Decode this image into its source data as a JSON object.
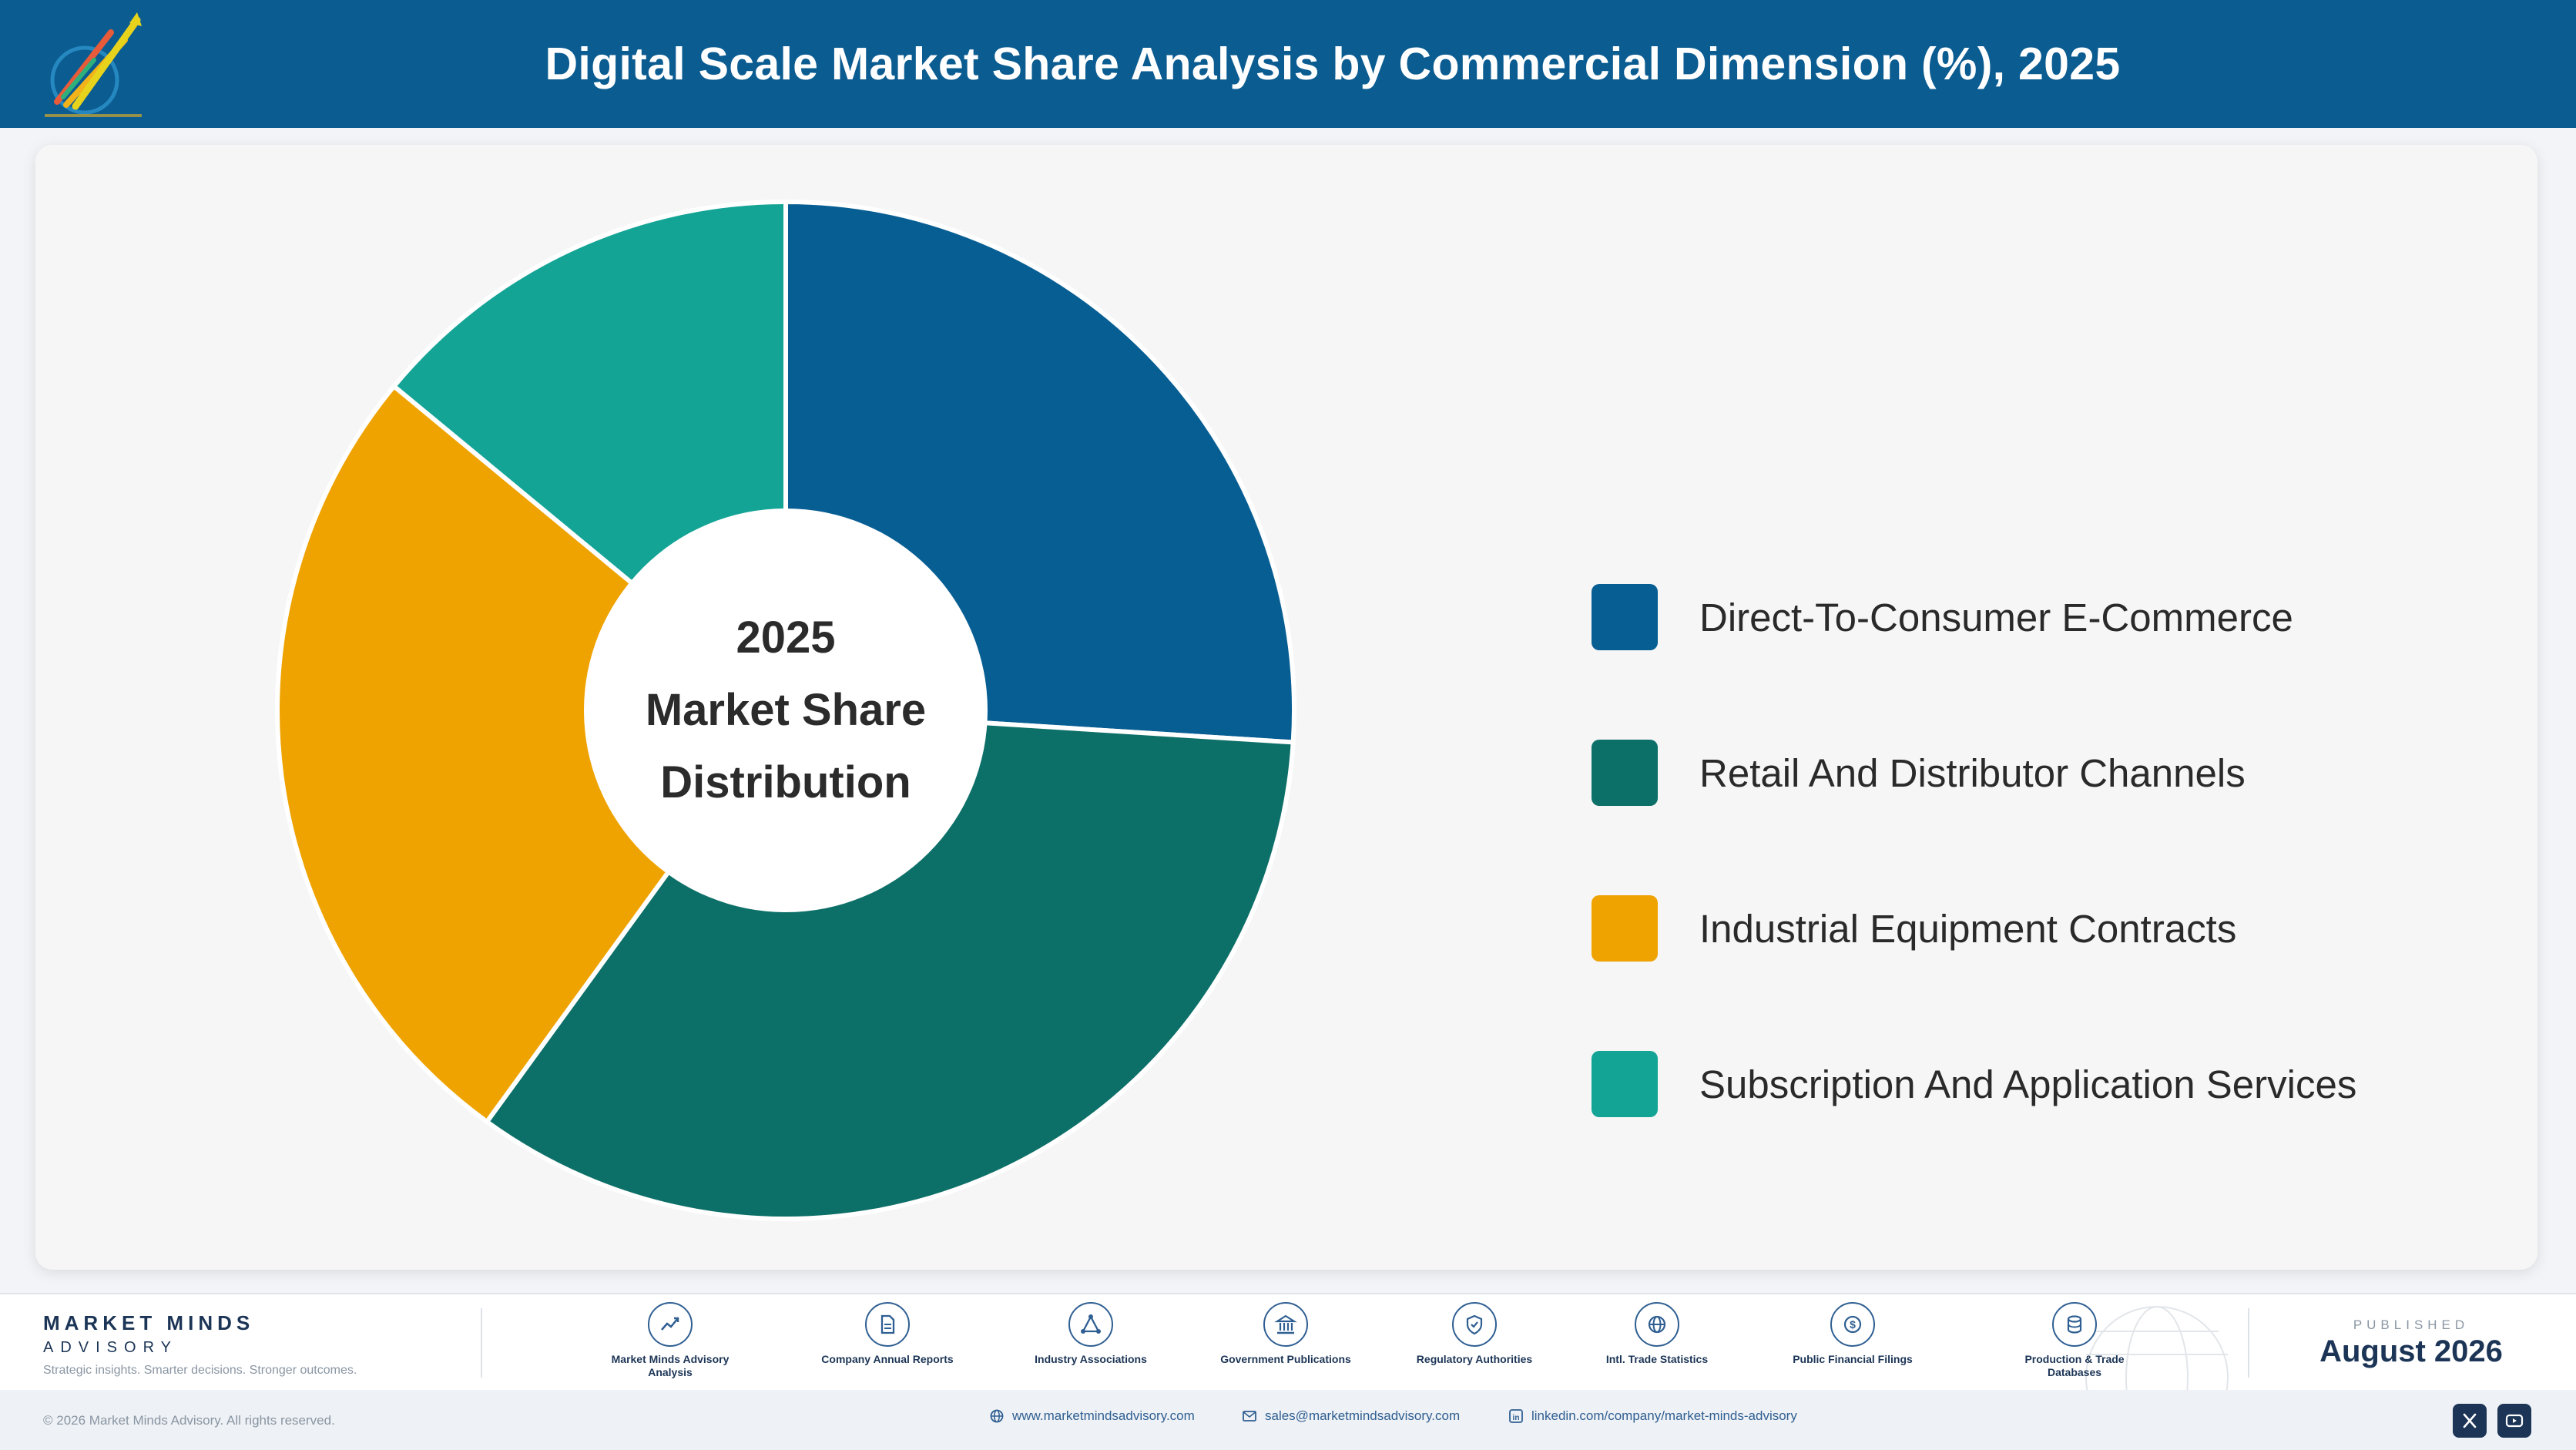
{
  "header": {
    "title": "Digital Scale Market Share Analysis by Commercial Dimension (%), 2025",
    "logo_icon": "market-minds-logo"
  },
  "chart_data": {
    "type": "pie",
    "center_label": [
      "2025",
      "Market Share",
      "Distribution"
    ],
    "categories": [
      "Direct-To-Consumer E-Commerce",
      "Retail And Distributor Channels",
      "Industrial Equipment Contracts",
      "Subscription And Application Services"
    ],
    "values": [
      26,
      34,
      26,
      14
    ],
    "colors": [
      "#075e93",
      "#0d7068",
      "#efa300",
      "#13a496"
    ],
    "legend_position": "right",
    "donut": true
  },
  "footer": {
    "brand_name": "MARKET MINDS",
    "brand_sub": "ADVISORY",
    "brand_tagline": "Strategic insights. Smarter decisions. Stronger outcomes.",
    "sources": [
      {
        "label": "Market Minds Advisory Analysis",
        "icon": "trend-chart-icon"
      },
      {
        "label": "Company Annual Reports",
        "icon": "document-icon"
      },
      {
        "label": "Industry Associations",
        "icon": "network-icon"
      },
      {
        "label": "Government Publications",
        "icon": "government-building-icon"
      },
      {
        "label": "Regulatory Authorities",
        "icon": "shield-check-icon"
      },
      {
        "label": "Intl. Trade Statistics",
        "icon": "globe-icon"
      },
      {
        "label": "Public Financial Filings",
        "icon": "dollar-coin-icon"
      },
      {
        "label": "Production & Trade Databases",
        "icon": "database-icon"
      }
    ],
    "published_label": "PUBLISHED",
    "published_date": "August 2026"
  },
  "bottom_bar": {
    "copyright": "© 2026 Market Minds Advisory. All rights reserved.",
    "website": "www.marketmindsadvisory.com",
    "email": "sales@marketmindsadvisory.com",
    "linkedin": "linkedin.com/company/market-minds-advisory",
    "social_icons": [
      "x-icon",
      "youtube-icon"
    ]
  }
}
